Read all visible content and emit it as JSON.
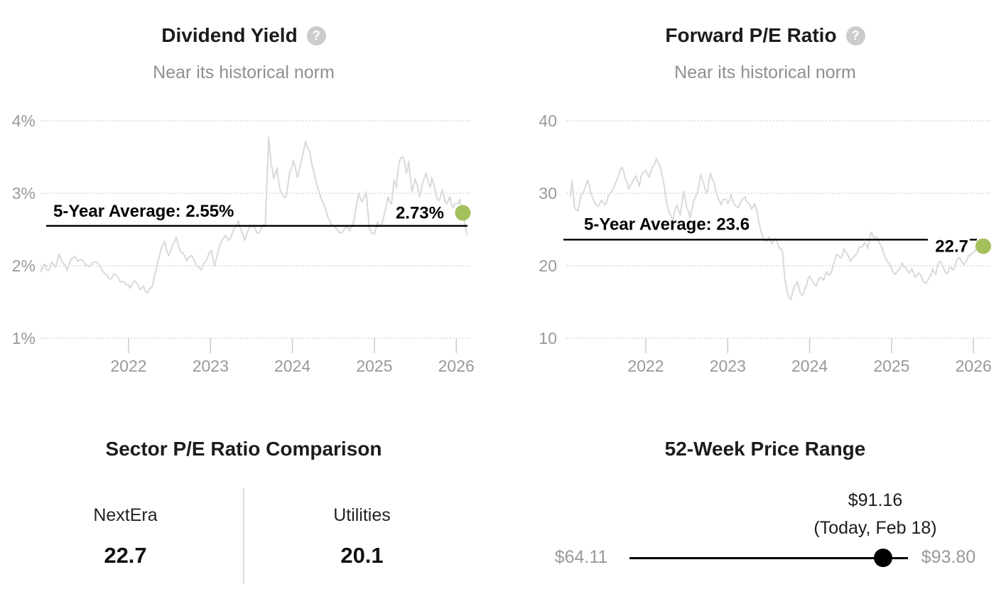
{
  "icons": {
    "help_glyph": "?"
  },
  "colors": {
    "accent_green": "#a4c05c",
    "series_line": "#d9d9d9",
    "gridline": "#d2d2d2",
    "axis_text": "#999999",
    "muted_text": "#8f8f8f",
    "dark_text": "#1c1c1c",
    "annotation": "#000000",
    "help_icon_bg": "#cccccc",
    "divider": "#dcdcdc"
  },
  "chart_data": [
    {
      "type": "line",
      "title": "Dividend Yield",
      "subtitle": "Near its historical norm",
      "y_tick_values": [
        1,
        2,
        3,
        4
      ],
      "y_tick_labels": [
        "1%",
        "2%",
        "3%",
        "4%"
      ],
      "x_tick_values": [
        2022,
        2023,
        2024,
        2025,
        2026
      ],
      "x_tick_labels": [
        "2022",
        "2023",
        "2024",
        "2025",
        "2026"
      ],
      "x_range": [
        2020.93,
        2026.13
      ],
      "ylim": [
        1,
        4
      ],
      "grid": "dotted-horizontal",
      "average": 2.55,
      "average_label": "5-Year Average: 2.55%",
      "current": {
        "x": 2026.08,
        "value": 2.73,
        "label": "2.73%"
      },
      "points": [
        [
          2020.93,
          1.91
        ],
        [
          2020.95,
          1.96
        ],
        [
          2020.98,
          2.02
        ],
        [
          2021.02,
          1.93
        ],
        [
          2021.06,
          2.05
        ],
        [
          2021.11,
          1.98
        ],
        [
          2021.15,
          2.16
        ],
        [
          2021.19,
          2.05
        ],
        [
          2021.25,
          1.94
        ],
        [
          2021.3,
          2.1
        ],
        [
          2021.34,
          2.13
        ],
        [
          2021.38,
          2.06
        ],
        [
          2021.44,
          2.07
        ],
        [
          2021.5,
          2.0
        ],
        [
          2021.53,
          1.99
        ],
        [
          2021.58,
          2.05
        ],
        [
          2021.62,
          2.04
        ],
        [
          2021.67,
          1.95
        ],
        [
          2021.71,
          1.89
        ],
        [
          2021.76,
          1.82
        ],
        [
          2021.82,
          1.89
        ],
        [
          2021.88,
          1.82
        ],
        [
          2021.92,
          1.78
        ],
        [
          2021.97,
          1.74
        ],
        [
          2022.02,
          1.69
        ],
        [
          2022.08,
          1.79
        ],
        [
          2022.14,
          1.67
        ],
        [
          2022.18,
          1.72
        ],
        [
          2022.23,
          1.62
        ],
        [
          2022.28,
          1.7
        ],
        [
          2022.31,
          1.83
        ],
        [
          2022.36,
          2.07
        ],
        [
          2022.4,
          2.25
        ],
        [
          2022.44,
          2.34
        ],
        [
          2022.49,
          2.14
        ],
        [
          2022.54,
          2.3
        ],
        [
          2022.58,
          2.4
        ],
        [
          2022.64,
          2.19
        ],
        [
          2022.71,
          2.07
        ],
        [
          2022.77,
          2.14
        ],
        [
          2022.83,
          2.0
        ],
        [
          2022.89,
          1.94
        ],
        [
          2022.95,
          2.07
        ],
        [
          2023.01,
          2.21
        ],
        [
          2023.05,
          2.0
        ],
        [
          2023.12,
          2.3
        ],
        [
          2023.18,
          2.42
        ],
        [
          2023.22,
          2.35
        ],
        [
          2023.28,
          2.5
        ],
        [
          2023.34,
          2.62
        ],
        [
          2023.38,
          2.48
        ],
        [
          2023.42,
          2.35
        ],
        [
          2023.47,
          2.52
        ],
        [
          2023.51,
          2.55
        ],
        [
          2023.57,
          2.45
        ],
        [
          2023.62,
          2.52
        ],
        [
          2023.67,
          2.58
        ],
        [
          2023.69,
          3.2
        ],
        [
          2023.71,
          3.78
        ],
        [
          2023.74,
          3.4
        ],
        [
          2023.77,
          3.2
        ],
        [
          2023.81,
          3.35
        ],
        [
          2023.85,
          3.05
        ],
        [
          2023.88,
          2.98
        ],
        [
          2023.92,
          2.95
        ],
        [
          2023.97,
          3.3
        ],
        [
          2024.01,
          3.45
        ],
        [
          2024.06,
          3.22
        ],
        [
          2024.12,
          3.5
        ],
        [
          2024.16,
          3.72
        ],
        [
          2024.21,
          3.58
        ],
        [
          2024.26,
          3.3
        ],
        [
          2024.33,
          3.0
        ],
        [
          2024.4,
          2.8
        ],
        [
          2024.46,
          2.62
        ],
        [
          2024.51,
          2.55
        ],
        [
          2024.58,
          2.45
        ],
        [
          2024.64,
          2.52
        ],
        [
          2024.7,
          2.48
        ],
        [
          2024.75,
          2.62
        ],
        [
          2024.81,
          3.0
        ],
        [
          2024.85,
          2.88
        ],
        [
          2024.9,
          3.02
        ],
        [
          2024.94,
          2.52
        ],
        [
          2025.0,
          2.44
        ],
        [
          2025.04,
          2.6
        ],
        [
          2025.09,
          2.55
        ],
        [
          2025.13,
          2.75
        ],
        [
          2025.17,
          2.95
        ],
        [
          2025.21,
          2.85
        ],
        [
          2025.24,
          3.18
        ],
        [
          2025.27,
          3.08
        ],
        [
          2025.3,
          3.42
        ],
        [
          2025.35,
          3.5
        ],
        [
          2025.39,
          3.28
        ],
        [
          2025.42,
          3.44
        ],
        [
          2025.46,
          3.02
        ],
        [
          2025.5,
          3.2
        ],
        [
          2025.55,
          2.95
        ],
        [
          2025.59,
          3.14
        ],
        [
          2025.63,
          3.28
        ],
        [
          2025.68,
          3.08
        ],
        [
          2025.7,
          3.22
        ],
        [
          2025.75,
          3.0
        ],
        [
          2025.79,
          2.9
        ],
        [
          2025.83,
          3.05
        ],
        [
          2025.88,
          2.85
        ],
        [
          2025.92,
          2.95
        ],
        [
          2025.96,
          2.8
        ],
        [
          2026.01,
          2.86
        ],
        [
          2026.04,
          2.92
        ],
        [
          2026.08,
          2.73
        ],
        [
          2026.13,
          2.42
        ]
      ]
    },
    {
      "type": "line",
      "title": "Forward P/E Ratio",
      "subtitle": "Near its historical norm",
      "y_tick_values": [
        10,
        20,
        30,
        40
      ],
      "y_tick_labels": [
        "10",
        "20",
        "30",
        "40"
      ],
      "x_tick_values": [
        2022,
        2023,
        2024,
        2025,
        2026
      ],
      "x_tick_labels": [
        "2022",
        "2023",
        "2024",
        "2025",
        "2026"
      ],
      "x_range": [
        2021.08,
        2026.12
      ],
      "ylim": [
        10,
        40
      ],
      "grid": "dotted-horizontal",
      "average": 23.6,
      "average_label": "5-Year Average: 23.6",
      "current": {
        "x": 2026.12,
        "value": 22.7,
        "label": "22.7"
      },
      "points": [
        [
          2021.08,
          29.5
        ],
        [
          2021.1,
          31.8
        ],
        [
          2021.13,
          28.0
        ],
        [
          2021.17,
          27.6
        ],
        [
          2021.21,
          29.8
        ],
        [
          2021.25,
          30.5
        ],
        [
          2021.29,
          31.8
        ],
        [
          2021.33,
          30.0
        ],
        [
          2021.38,
          28.6
        ],
        [
          2021.42,
          28.2
        ],
        [
          2021.46,
          29.0
        ],
        [
          2021.5,
          28.4
        ],
        [
          2021.54,
          29.6
        ],
        [
          2021.58,
          30.2
        ],
        [
          2021.63,
          31.4
        ],
        [
          2021.67,
          32.6
        ],
        [
          2021.71,
          33.6
        ],
        [
          2021.75,
          32.0
        ],
        [
          2021.79,
          30.6
        ],
        [
          2021.83,
          31.4
        ],
        [
          2021.88,
          32.4
        ],
        [
          2021.92,
          31.0
        ],
        [
          2021.96,
          32.8
        ],
        [
          2022.0,
          33.2
        ],
        [
          2022.04,
          32.2
        ],
        [
          2022.08,
          33.6
        ],
        [
          2022.13,
          34.8
        ],
        [
          2022.17,
          34.0
        ],
        [
          2022.21,
          32.0
        ],
        [
          2022.25,
          29.0
        ],
        [
          2022.29,
          27.2
        ],
        [
          2022.33,
          26.2
        ],
        [
          2022.38,
          28.4
        ],
        [
          2022.42,
          27.0
        ],
        [
          2022.46,
          30.3
        ],
        [
          2022.5,
          28.0
        ],
        [
          2022.54,
          26.6
        ],
        [
          2022.58,
          28.8
        ],
        [
          2022.63,
          30.0
        ],
        [
          2022.67,
          32.6
        ],
        [
          2022.71,
          31.2
        ],
        [
          2022.75,
          30.0
        ],
        [
          2022.79,
          32.8
        ],
        [
          2022.83,
          31.6
        ],
        [
          2022.88,
          29.4
        ],
        [
          2022.92,
          28.4
        ],
        [
          2022.96,
          29.2
        ],
        [
          2023.0,
          28.6
        ],
        [
          2023.04,
          29.8
        ],
        [
          2023.08,
          28.4
        ],
        [
          2023.13,
          28.0
        ],
        [
          2023.17,
          29.0
        ],
        [
          2023.21,
          29.5
        ],
        [
          2023.25,
          28.6
        ],
        [
          2023.29,
          27.8
        ],
        [
          2023.33,
          28.6
        ],
        [
          2023.38,
          26.0
        ],
        [
          2023.42,
          24.2
        ],
        [
          2023.46,
          23.4
        ],
        [
          2023.5,
          24.0
        ],
        [
          2023.54,
          23.0
        ],
        [
          2023.58,
          23.8
        ],
        [
          2023.63,
          22.4
        ],
        [
          2023.67,
          21.8
        ],
        [
          2023.7,
          18.0
        ],
        [
          2023.73,
          16.2
        ],
        [
          2023.77,
          15.3
        ],
        [
          2023.81,
          17.0
        ],
        [
          2023.85,
          17.8
        ],
        [
          2023.88,
          16.4
        ],
        [
          2023.92,
          16.0
        ],
        [
          2023.96,
          17.2
        ],
        [
          2024.0,
          18.6
        ],
        [
          2024.04,
          17.8
        ],
        [
          2024.08,
          17.2
        ],
        [
          2024.13,
          18.4
        ],
        [
          2024.17,
          18.0
        ],
        [
          2024.21,
          19.2
        ],
        [
          2024.25,
          18.8
        ],
        [
          2024.29,
          20.2
        ],
        [
          2024.33,
          21.6
        ],
        [
          2024.38,
          21.0
        ],
        [
          2024.42,
          22.4
        ],
        [
          2024.46,
          21.6
        ],
        [
          2024.5,
          20.6
        ],
        [
          2024.54,
          21.2
        ],
        [
          2024.58,
          21.8
        ],
        [
          2024.63,
          22.6
        ],
        [
          2024.67,
          23.2
        ],
        [
          2024.71,
          22.4
        ],
        [
          2024.75,
          24.6
        ],
        [
          2024.79,
          23.6
        ],
        [
          2024.83,
          23.8
        ],
        [
          2024.88,
          22.6
        ],
        [
          2024.92,
          21.2
        ],
        [
          2024.96,
          20.4
        ],
        [
          2025.0,
          19.6
        ],
        [
          2025.04,
          18.8
        ],
        [
          2025.08,
          19.4
        ],
        [
          2025.13,
          20.4
        ],
        [
          2025.17,
          19.8
        ],
        [
          2025.21,
          19.0
        ],
        [
          2025.25,
          19.6
        ],
        [
          2025.29,
          18.4
        ],
        [
          2025.33,
          19.0
        ],
        [
          2025.38,
          18.0
        ],
        [
          2025.42,
          17.6
        ],
        [
          2025.46,
          18.4
        ],
        [
          2025.5,
          19.6
        ],
        [
          2025.54,
          18.8
        ],
        [
          2025.58,
          20.6
        ],
        [
          2025.63,
          19.8
        ],
        [
          2025.67,
          18.9
        ],
        [
          2025.71,
          19.8
        ],
        [
          2025.75,
          19.4
        ],
        [
          2025.79,
          20.6
        ],
        [
          2025.83,
          21.2
        ],
        [
          2025.88,
          20.2
        ],
        [
          2025.92,
          20.8
        ],
        [
          2025.96,
          21.4
        ],
        [
          2026.0,
          21.8
        ],
        [
          2026.04,
          22.6
        ],
        [
          2026.08,
          23.6
        ],
        [
          2026.12,
          22.7
        ]
      ]
    },
    {
      "type": "table",
      "title": "Sector P/E Ratio Comparison",
      "categories": [
        "NextEra",
        "Utilities"
      ],
      "values": [
        22.7,
        20.1
      ]
    },
    {
      "type": "range",
      "title": "52-Week Price Range",
      "min": 64.11,
      "max": 93.8,
      "current": 91.16,
      "min_label": "$64.11",
      "max_label": "$93.80",
      "current_label": "$91.16",
      "current_sublabel": "(Today, Feb 18)"
    }
  ]
}
